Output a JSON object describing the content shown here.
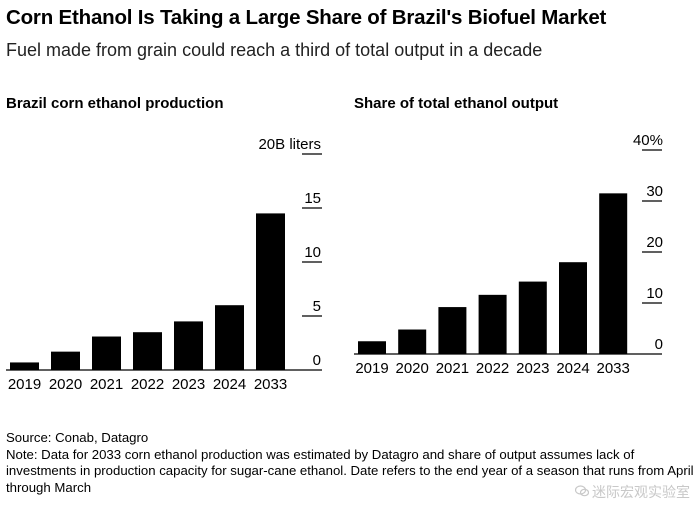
{
  "title": "Corn Ethanol Is Taking a Large Share of Brazil's Biofuel Market",
  "subtitle": "Fuel made from grain could reach a third of total output in a decade",
  "footer": {
    "source": "Source: Conab, Datagro",
    "note": "Note: Data for 2033 corn ethanol production was estimated by Datagro and share of output assumes lack of investments in production capacity for sugar-cane ethanol. Date refers to the end year of a season that runs from April through March"
  },
  "watermark": "迷际宏观实验室",
  "chart_data": [
    {
      "type": "bar",
      "title": "Brazil corn ethanol production",
      "categories": [
        "2019",
        "2020",
        "2021",
        "2022",
        "2023",
        "2024",
        "2033"
      ],
      "values": [
        0.7,
        1.7,
        3.1,
        3.5,
        4.5,
        6.0,
        14.5
      ],
      "unit": "B liters",
      "ylim": [
        0,
        20
      ],
      "yticks": [
        0,
        5,
        10,
        15,
        20
      ],
      "ytick_labels": [
        "0",
        "5",
        "10",
        "15",
        "20B liters"
      ],
      "bar_color": "#000000",
      "axis_side": "right",
      "grid": false
    },
    {
      "type": "bar",
      "title": "Share of total ethanol output",
      "categories": [
        "2019",
        "2020",
        "2021",
        "2022",
        "2023",
        "2024",
        "2033"
      ],
      "values": [
        2.5,
        4.8,
        9.2,
        11.6,
        14.2,
        18.0,
        31.5
      ],
      "unit": "%",
      "ylim": [
        0,
        40
      ],
      "yticks": [
        0,
        10,
        20,
        30,
        40
      ],
      "ytick_labels": [
        "0",
        "10",
        "20",
        "30",
        "40%"
      ],
      "bar_color": "#000000",
      "axis_side": "right",
      "grid": false
    }
  ]
}
